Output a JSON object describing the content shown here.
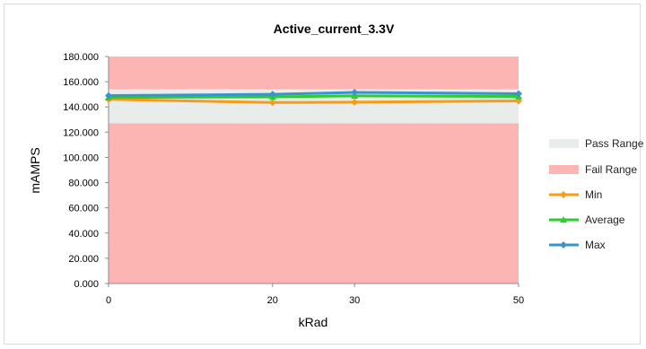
{
  "chart_data": {
    "type": "line",
    "title": "Active_current_3.3V",
    "xlabel": "kRad",
    "ylabel": "mAMPS",
    "x": [
      0,
      20,
      30,
      50
    ],
    "x_ticks": [
      "0",
      "20",
      "30",
      "50"
    ],
    "ylim": [
      0,
      180
    ],
    "y_ticks": [
      "0.000",
      "20.000",
      "40.000",
      "60.000",
      "80.000",
      "100.000",
      "120.000",
      "140.000",
      "160.000",
      "180.000"
    ],
    "grid": false,
    "legend_position": "right",
    "bands": [
      {
        "name": "Pass Range",
        "from": 127,
        "to": 154,
        "color": "#e8eceb"
      },
      {
        "name": "Fail Range",
        "from": 0,
        "to": 180,
        "color": "#fdb5b4"
      }
    ],
    "series": [
      {
        "name": "Min",
        "values": [
          146,
          143.5,
          143.8,
          144.8
        ],
        "color": "#f59c1a",
        "marker": "diamond"
      },
      {
        "name": "Average",
        "values": [
          147.5,
          148,
          148.8,
          148.3
        ],
        "color": "#2ecc2e",
        "marker": "triangle"
      },
      {
        "name": "Max",
        "values": [
          149,
          150,
          151.5,
          150.5
        ],
        "color": "#3a93c9",
        "marker": "diamond"
      }
    ]
  }
}
